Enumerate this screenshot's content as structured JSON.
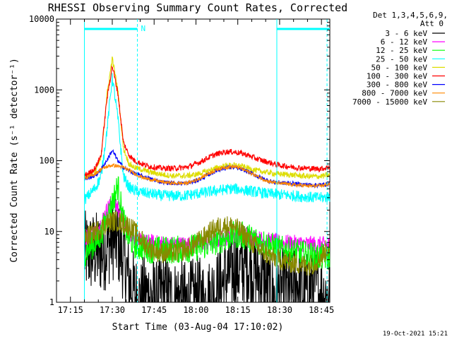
{
  "chart_data": {
    "type": "line",
    "title": "RHESSI Observing Summary Count Rates, Corrected",
    "xlabel": "Start Time (03-Aug-04 17:10:02)",
    "ylabel": "Corrected Count Rate (s⁻¹ detector⁻¹)",
    "yscale": "log",
    "ylim": [
      1,
      10000
    ],
    "xlim": [
      "17:10:02",
      "18:48:00"
    ],
    "y_ticks": [
      "1",
      "10",
      "100",
      "1000",
      "10000"
    ],
    "x_ticks": [
      "17:15",
      "17:30",
      "17:45",
      "18:00",
      "18:15",
      "18:30",
      "18:45"
    ],
    "legend": {
      "header_line1": "Det 1,3,4,5,6,9,",
      "header_line2": "Att 0",
      "placement": "right"
    },
    "series": [
      {
        "name": "3 - 6 keV",
        "color": "#000000",
        "x": [
          10,
          12,
          14,
          16,
          18,
          20,
          22,
          24,
          26,
          28,
          30,
          32,
          34,
          36,
          38,
          40,
          42,
          44,
          46,
          48,
          50,
          52,
          54,
          56,
          58,
          60,
          62,
          64,
          66,
          68,
          70,
          72,
          74,
          76,
          78,
          80,
          82,
          84,
          86,
          88,
          90,
          92,
          94,
          96,
          98
        ],
        "y": [
          5,
          5,
          5,
          5,
          6,
          8,
          7,
          4,
          2,
          1.3,
          1,
          1.3,
          1.2,
          1,
          1.4,
          1.2,
          1,
          1.2,
          1,
          1,
          1.2,
          1.1,
          1,
          1.3,
          1.5,
          2,
          2.5,
          3,
          3,
          3.5,
          3,
          2.5,
          2,
          1.5,
          1.2,
          1.4,
          1.6,
          1.3,
          2,
          1.5,
          1.3,
          2,
          1.4,
          1.2,
          1.3
        ],
        "noise": 0.6
      },
      {
        "name": "6 - 12 keV",
        "color": "#ff00ff",
        "x": [
          10,
          12,
          14,
          16,
          18,
          20,
          22,
          24,
          26,
          28,
          30,
          32,
          34,
          36,
          38,
          40,
          42,
          44,
          46,
          48,
          50,
          52,
          54,
          56,
          58,
          60,
          62,
          64,
          66,
          68,
          70,
          72,
          74,
          76,
          78,
          80,
          82,
          84,
          86,
          88,
          90,
          92,
          94,
          96,
          98
        ],
        "y": [
          8,
          9,
          10,
          13,
          20,
          27,
          22,
          14,
          10,
          8,
          7.2,
          7,
          7,
          6.8,
          6.8,
          6.6,
          6.5,
          6.5,
          6.6,
          6.6,
          6.7,
          6.8,
          7,
          7.2,
          7.6,
          8,
          8.5,
          9,
          9,
          8.8,
          8.4,
          8,
          7.6,
          7.4,
          7.2,
          7,
          6.9,
          6.8,
          6.8,
          6.7,
          6.6,
          6.6,
          6.5,
          6.5,
          6.5
        ],
        "noise": 0.12
      },
      {
        "name": "12 - 25 keV",
        "color": "#00ff00",
        "x": [
          10,
          12,
          14,
          16,
          18,
          20,
          22,
          24,
          26,
          28,
          30,
          32,
          34,
          36,
          38,
          40,
          42,
          44,
          46,
          48,
          50,
          52,
          54,
          56,
          58,
          60,
          62,
          64,
          66,
          68,
          70,
          72,
          74,
          76,
          78,
          80,
          82,
          84,
          86,
          88,
          90,
          92,
          94,
          96,
          98
        ],
        "y": [
          5,
          6,
          7,
          9,
          15,
          25,
          45,
          14,
          8,
          6.5,
          6,
          6,
          5.5,
          5.5,
          5.5,
          5.5,
          5.5,
          5.6,
          5.6,
          5.8,
          6,
          6.2,
          6.5,
          7,
          7.5,
          8,
          8.5,
          9,
          9,
          8.5,
          8,
          7.5,
          7,
          6.5,
          6,
          5.6,
          5.4,
          5.2,
          5,
          4.8,
          4.6,
          4.5,
          4.4,
          4.4,
          4.3
        ],
        "noise": 0.2
      },
      {
        "name": "25 - 50 keV",
        "color": "#00ffff",
        "x": [
          10,
          12,
          14,
          16,
          18,
          20,
          22,
          24,
          26,
          28,
          30,
          32,
          34,
          36,
          38,
          40,
          42,
          44,
          46,
          48,
          50,
          52,
          54,
          56,
          58,
          60,
          62,
          64,
          66,
          68,
          70,
          72,
          74,
          76,
          78,
          80,
          82,
          84,
          86,
          88,
          90,
          92,
          94,
          96,
          98
        ],
        "y": [
          28,
          34,
          42,
          60,
          250,
          1500,
          400,
          60,
          42,
          38,
          36,
          35,
          34,
          33,
          32,
          32,
          32,
          32,
          32,
          33,
          34,
          35,
          36,
          37,
          38,
          39,
          40,
          40,
          39,
          38,
          37,
          36,
          35,
          34,
          34,
          33,
          33,
          32,
          32,
          31,
          31,
          30,
          30,
          30,
          31
        ],
        "noise": 0.08
      },
      {
        "name": "50 - 100 keV",
        "color": "#dddd00",
        "x": [
          10,
          12,
          14,
          16,
          18,
          20,
          22,
          24,
          26,
          28,
          30,
          32,
          34,
          36,
          38,
          40,
          42,
          44,
          46,
          48,
          50,
          52,
          54,
          56,
          58,
          60,
          62,
          64,
          66,
          68,
          70,
          72,
          74,
          76,
          78,
          80,
          82,
          84,
          86,
          88,
          90,
          92,
          94,
          96,
          98
        ],
        "y": [
          60,
          64,
          72,
          110,
          800,
          2800,
          1000,
          150,
          90,
          80,
          76,
          72,
          68,
          66,
          64,
          62,
          61,
          61,
          61,
          62,
          64,
          67,
          71,
          76,
          80,
          84,
          86,
          86,
          84,
          80,
          76,
          72,
          70,
          68,
          66,
          65,
          64,
          63,
          62,
          61,
          60,
          60,
          60,
          61,
          63
        ],
        "noise": 0.04
      },
      {
        "name": "100 - 300 keV",
        "color": "#ff0000",
        "x": [
          10,
          12,
          14,
          16,
          18,
          20,
          22,
          24,
          26,
          28,
          30,
          32,
          34,
          36,
          38,
          40,
          42,
          44,
          46,
          48,
          50,
          52,
          54,
          56,
          58,
          60,
          62,
          64,
          66,
          68,
          70,
          72,
          74,
          76,
          78,
          80,
          82,
          84,
          86,
          88,
          90,
          92,
          94,
          96,
          98
        ],
        "y": [
          62,
          68,
          80,
          120,
          700,
          2200,
          900,
          180,
          120,
          100,
          92,
          86,
          82,
          80,
          78,
          78,
          78,
          79,
          80,
          84,
          90,
          98,
          108,
          118,
          126,
          132,
          134,
          132,
          128,
          122,
          114,
          106,
          100,
          95,
          90,
          86,
          84,
          82,
          80,
          79,
          78,
          77,
          77,
          78,
          82
        ],
        "noise": 0.04
      },
      {
        "name": "300 - 800 keV",
        "color": "#0000ff",
        "x": [
          10,
          12,
          14,
          16,
          18,
          20,
          22,
          24,
          26,
          28,
          30,
          32,
          34,
          36,
          38,
          40,
          42,
          44,
          46,
          48,
          50,
          52,
          54,
          56,
          58,
          60,
          62,
          64,
          66,
          68,
          70,
          72,
          74,
          76,
          78,
          80,
          82,
          84,
          86,
          88,
          90,
          92,
          94,
          96,
          98
        ],
        "y": [
          55,
          58,
          62,
          75,
          100,
          140,
          100,
          80,
          72,
          66,
          62,
          58,
          55,
          52,
          50,
          49,
          48,
          48,
          48,
          49,
          52,
          56,
          62,
          68,
          74,
          78,
          80,
          80,
          76,
          72,
          66,
          60,
          56,
          52,
          50,
          49,
          48,
          48,
          47,
          46,
          46,
          45,
          45,
          46,
          48
        ],
        "noise": 0.03
      },
      {
        "name": "800 - 7000 keV",
        "color": "#ff8800",
        "x": [
          10,
          12,
          14,
          16,
          18,
          20,
          22,
          24,
          26,
          28,
          30,
          32,
          34,
          36,
          38,
          40,
          42,
          44,
          46,
          48,
          50,
          52,
          54,
          56,
          58,
          60,
          62,
          64,
          66,
          68,
          70,
          72,
          74,
          76,
          78,
          80,
          82,
          84,
          86,
          88,
          90,
          92,
          94,
          96,
          98
        ],
        "y": [
          56,
          60,
          66,
          76,
          82,
          86,
          84,
          80,
          74,
          66,
          60,
          56,
          54,
          52,
          50,
          49,
          48,
          48,
          48,
          50,
          53,
          58,
          64,
          70,
          76,
          80,
          82,
          82,
          78,
          72,
          66,
          60,
          55,
          51,
          49,
          48,
          47,
          46,
          45,
          45,
          44,
          44,
          44,
          45,
          47
        ],
        "noise": 0.025
      },
      {
        "name": "7000 - 15000 keV",
        "color": "#888800",
        "x": [
          10,
          12,
          14,
          16,
          18,
          20,
          22,
          24,
          26,
          28,
          30,
          32,
          34,
          36,
          38,
          40,
          42,
          44,
          46,
          48,
          50,
          52,
          54,
          56,
          58,
          60,
          62,
          64,
          66,
          68,
          70,
          72,
          74,
          76,
          78,
          80,
          82,
          84,
          86,
          88,
          90,
          92,
          94,
          96,
          98
        ],
        "y": [
          8,
          9,
          10,
          11,
          13,
          14,
          14,
          13,
          12,
          10,
          8,
          6.5,
          5.6,
          5.2,
          5,
          5,
          5,
          5.2,
          5.5,
          6,
          6.8,
          7.8,
          9,
          10.5,
          11.5,
          12,
          12,
          11.5,
          10,
          8.5,
          7,
          6,
          5.2,
          4.6,
          4.2,
          4,
          3.8,
          3.6,
          3.5,
          3.4,
          3.3,
          3.5,
          4,
          5,
          6.5
        ],
        "noise": 0.15
      }
    ],
    "annotations": {
      "flag_label": "N",
      "bars": [
        [
          10,
          29
        ],
        [
          79,
          98
        ]
      ],
      "solid_lines_at": [
        10,
        79
      ],
      "dashed_lines_at": [
        29,
        97
      ]
    }
  },
  "footer": {
    "date_stamp": "19-Oct-2021 15:21"
  }
}
